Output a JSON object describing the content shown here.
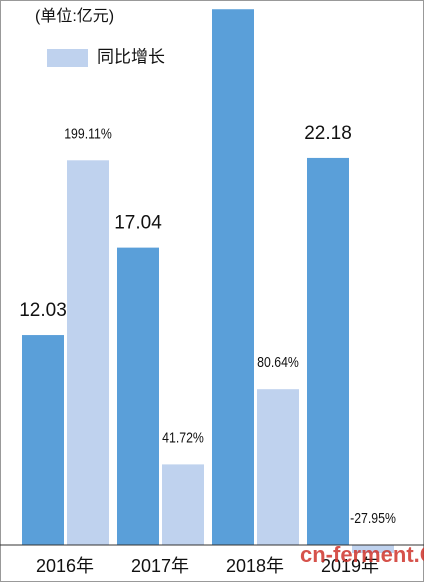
{
  "chart_data": {
    "type": "bar",
    "unit_note": "(单位:亿元)",
    "categories": [
      "2016年",
      "2017年",
      "2018年",
      "2019年"
    ],
    "series": [
      {
        "color": "#5a9fd9",
        "values": [
          12.03,
          17.04,
          30.7,
          22.18
        ],
        "value_labels": [
          "12.03",
          "17.04",
          null,
          "22.18"
        ]
      },
      {
        "name": "同比增长",
        "color": "#bfd2ee",
        "axis": "y2",
        "values": [
          199.11,
          41.72,
          80.64,
          -27.95
        ],
        "value_labels": [
          "199.11%",
          "41.72%",
          "80.64%",
          "-27.95%"
        ]
      }
    ],
    "ylim": [
      0,
      31
    ],
    "y2lim": [
      0,
      280
    ],
    "watermark": "cn-ferment.COM"
  }
}
